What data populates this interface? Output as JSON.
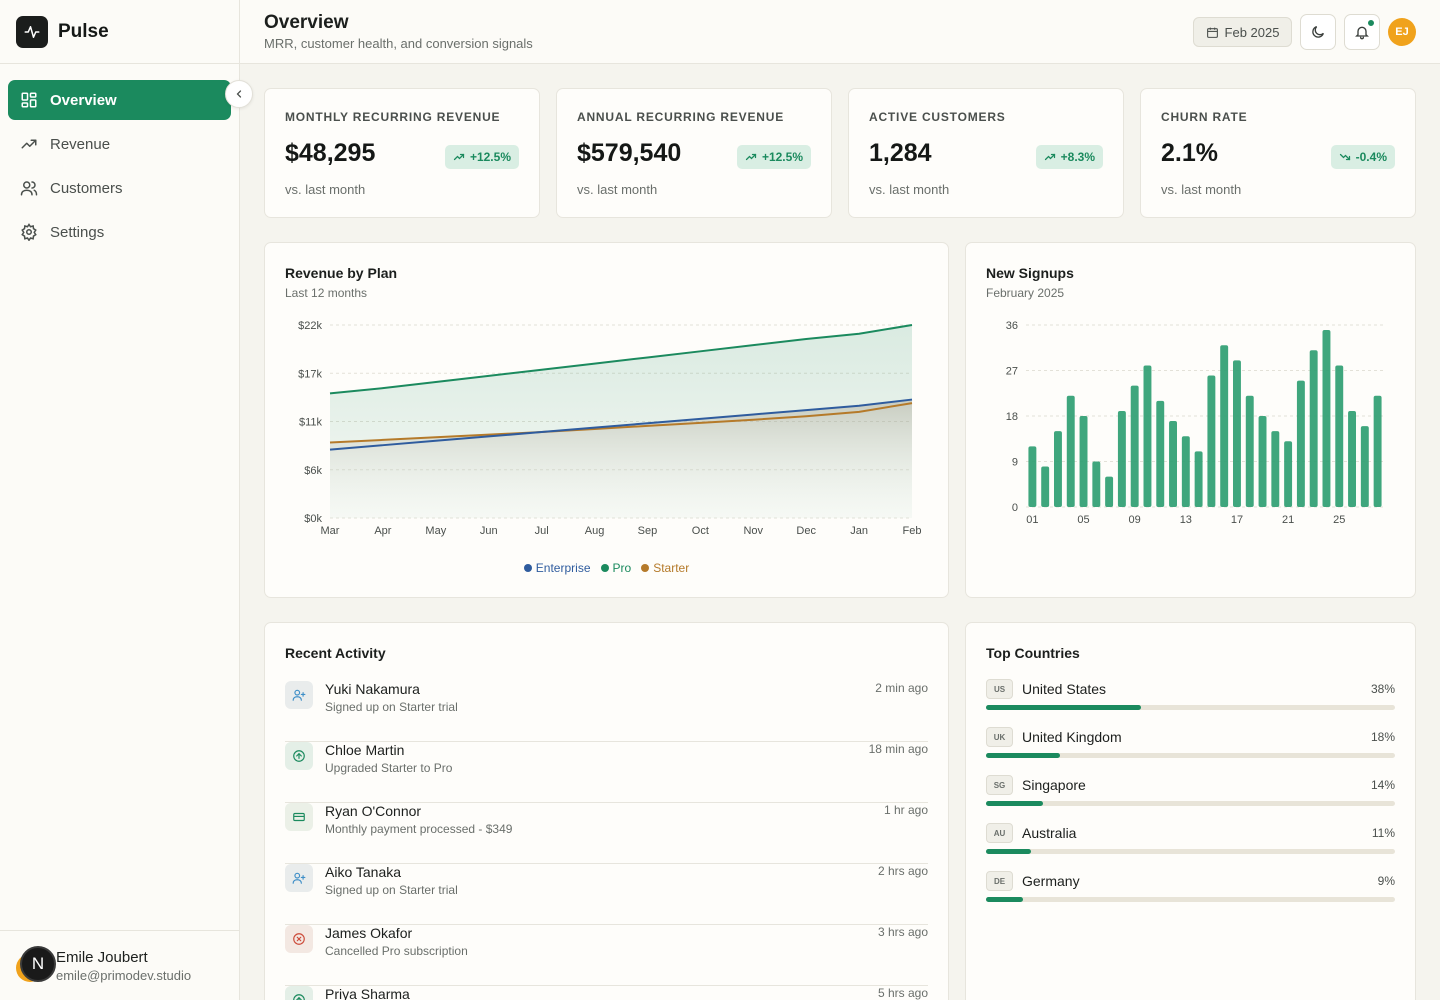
{
  "app": {
    "name": "Pulse"
  },
  "sidebar": {
    "items": [
      {
        "label": "Overview",
        "icon": "grid-icon",
        "active": true
      },
      {
        "label": "Revenue",
        "icon": "trending-up-icon",
        "active": false
      },
      {
        "label": "Customers",
        "icon": "users-icon",
        "active": false
      },
      {
        "label": "Settings",
        "icon": "gear-icon",
        "active": false
      }
    ],
    "user": {
      "initial": "N",
      "name": "Emile Joubert",
      "email": "emile@primodev.studio"
    }
  },
  "header": {
    "title": "Overview",
    "subtitle": "MRR, customer health, and conversion signals",
    "date_label": "Feb 2025",
    "avatar_initials": "EJ"
  },
  "kpis": [
    {
      "label": "MONTHLY RECURRING REVENUE",
      "value": "$48,295",
      "change": "+12.5%",
      "direction": "up",
      "sub": "vs. last month"
    },
    {
      "label": "ANNUAL RECURRING REVENUE",
      "value": "$579,540",
      "change": "+12.5%",
      "direction": "up",
      "sub": "vs. last month"
    },
    {
      "label": "ACTIVE CUSTOMERS",
      "value": "1,284",
      "change": "+8.3%",
      "direction": "up",
      "sub": "vs. last month"
    },
    {
      "label": "CHURN RATE",
      "value": "2.1%",
      "change": "-0.4%",
      "direction": "down",
      "sub": "vs. last month"
    }
  ],
  "colors": {
    "accent": "#1b8a5e",
    "enterprise": "#2f5c9e",
    "pro": "#1b8a5e",
    "starter": "#b57a2a",
    "bars": "#2f9e72"
  },
  "revenue_card": {
    "title": "Revenue by Plan",
    "subtitle": "Last 12 months"
  },
  "signups_card": {
    "title": "New Signups",
    "subtitle": "February 2025"
  },
  "chart_data": [
    {
      "type": "area",
      "title": "Revenue by Plan",
      "subtitle": "Last 12 months",
      "x": [
        "Mar",
        "Apr",
        "May",
        "Jun",
        "Jul",
        "Aug",
        "Sep",
        "Oct",
        "Nov",
        "Dec",
        "Jan",
        "Feb"
      ],
      "y_ticks": [
        "$0k",
        "$6k",
        "$11k",
        "$17k",
        "$22k"
      ],
      "ylim": [
        0,
        22000
      ],
      "series": [
        {
          "name": "Enterprise",
          "values": [
            7800,
            8300,
            8800,
            9300,
            9800,
            10300,
            10800,
            11300,
            11800,
            12300,
            12800,
            13500
          ]
        },
        {
          "name": "Pro",
          "values": [
            14200,
            14800,
            15500,
            16200,
            16900,
            17600,
            18300,
            19000,
            19700,
            20400,
            21000,
            22000
          ]
        },
        {
          "name": "Starter",
          "values": [
            8600,
            8900,
            9200,
            9500,
            9800,
            10150,
            10500,
            10850,
            11200,
            11600,
            12100,
            13100
          ]
        }
      ],
      "legend": "bottom-center",
      "grid": true
    },
    {
      "type": "bar",
      "title": "New Signups",
      "subtitle": "February 2025",
      "categories": [
        "01",
        "02",
        "03",
        "04",
        "05",
        "06",
        "07",
        "08",
        "09",
        "10",
        "11",
        "12",
        "13",
        "14",
        "15",
        "16",
        "17",
        "18",
        "19",
        "20",
        "21",
        "22",
        "23",
        "24",
        "25",
        "26",
        "27",
        "28"
      ],
      "x_ticks": [
        "01",
        "05",
        "09",
        "13",
        "17",
        "21",
        "25"
      ],
      "y_ticks": [
        "0",
        "9",
        "18",
        "27",
        "36"
      ],
      "values": [
        12,
        8,
        15,
        22,
        18,
        9,
        6,
        19,
        24,
        28,
        21,
        17,
        14,
        11,
        26,
        32,
        29,
        22,
        18,
        15,
        13,
        25,
        31,
        35,
        28,
        19,
        16,
        22
      ],
      "ylim": [
        0,
        36
      ],
      "grid": true
    }
  ],
  "activity": {
    "title": "Recent Activity",
    "items": [
      {
        "name": "Yuki Nakamura",
        "desc": "Signed up on Starter trial",
        "time": "2 min ago",
        "icon": "user-plus-icon"
      },
      {
        "name": "Chloe Martin",
        "desc": "Upgraded Starter to Pro",
        "time": "18 min ago",
        "icon": "arrow-up-circle-icon"
      },
      {
        "name": "Ryan O'Connor",
        "desc": "Monthly payment processed - $349",
        "time": "1 hr ago",
        "icon": "credit-card-icon"
      },
      {
        "name": "Aiko Tanaka",
        "desc": "Signed up on Starter trial",
        "time": "2 hrs ago",
        "icon": "user-plus-icon"
      },
      {
        "name": "James Okafor",
        "desc": "Cancelled Pro subscription",
        "time": "3 hrs ago",
        "icon": "x-circle-icon"
      },
      {
        "name": "Priya Sharma",
        "desc": "",
        "time": "5 hrs ago",
        "icon": "arrow-up-circle-icon"
      }
    ]
  },
  "countries": {
    "title": "Top Countries",
    "items": [
      {
        "code": "US",
        "name": "United States",
        "pct": "38%",
        "share": 0.38
      },
      {
        "code": "UK",
        "name": "United Kingdom",
        "pct": "18%",
        "share": 0.18
      },
      {
        "code": "SG",
        "name": "Singapore",
        "pct": "14%",
        "share": 0.14
      },
      {
        "code": "AU",
        "name": "Australia",
        "pct": "11%",
        "share": 0.11
      },
      {
        "code": "DE",
        "name": "Germany",
        "pct": "9%",
        "share": 0.09
      }
    ]
  }
}
